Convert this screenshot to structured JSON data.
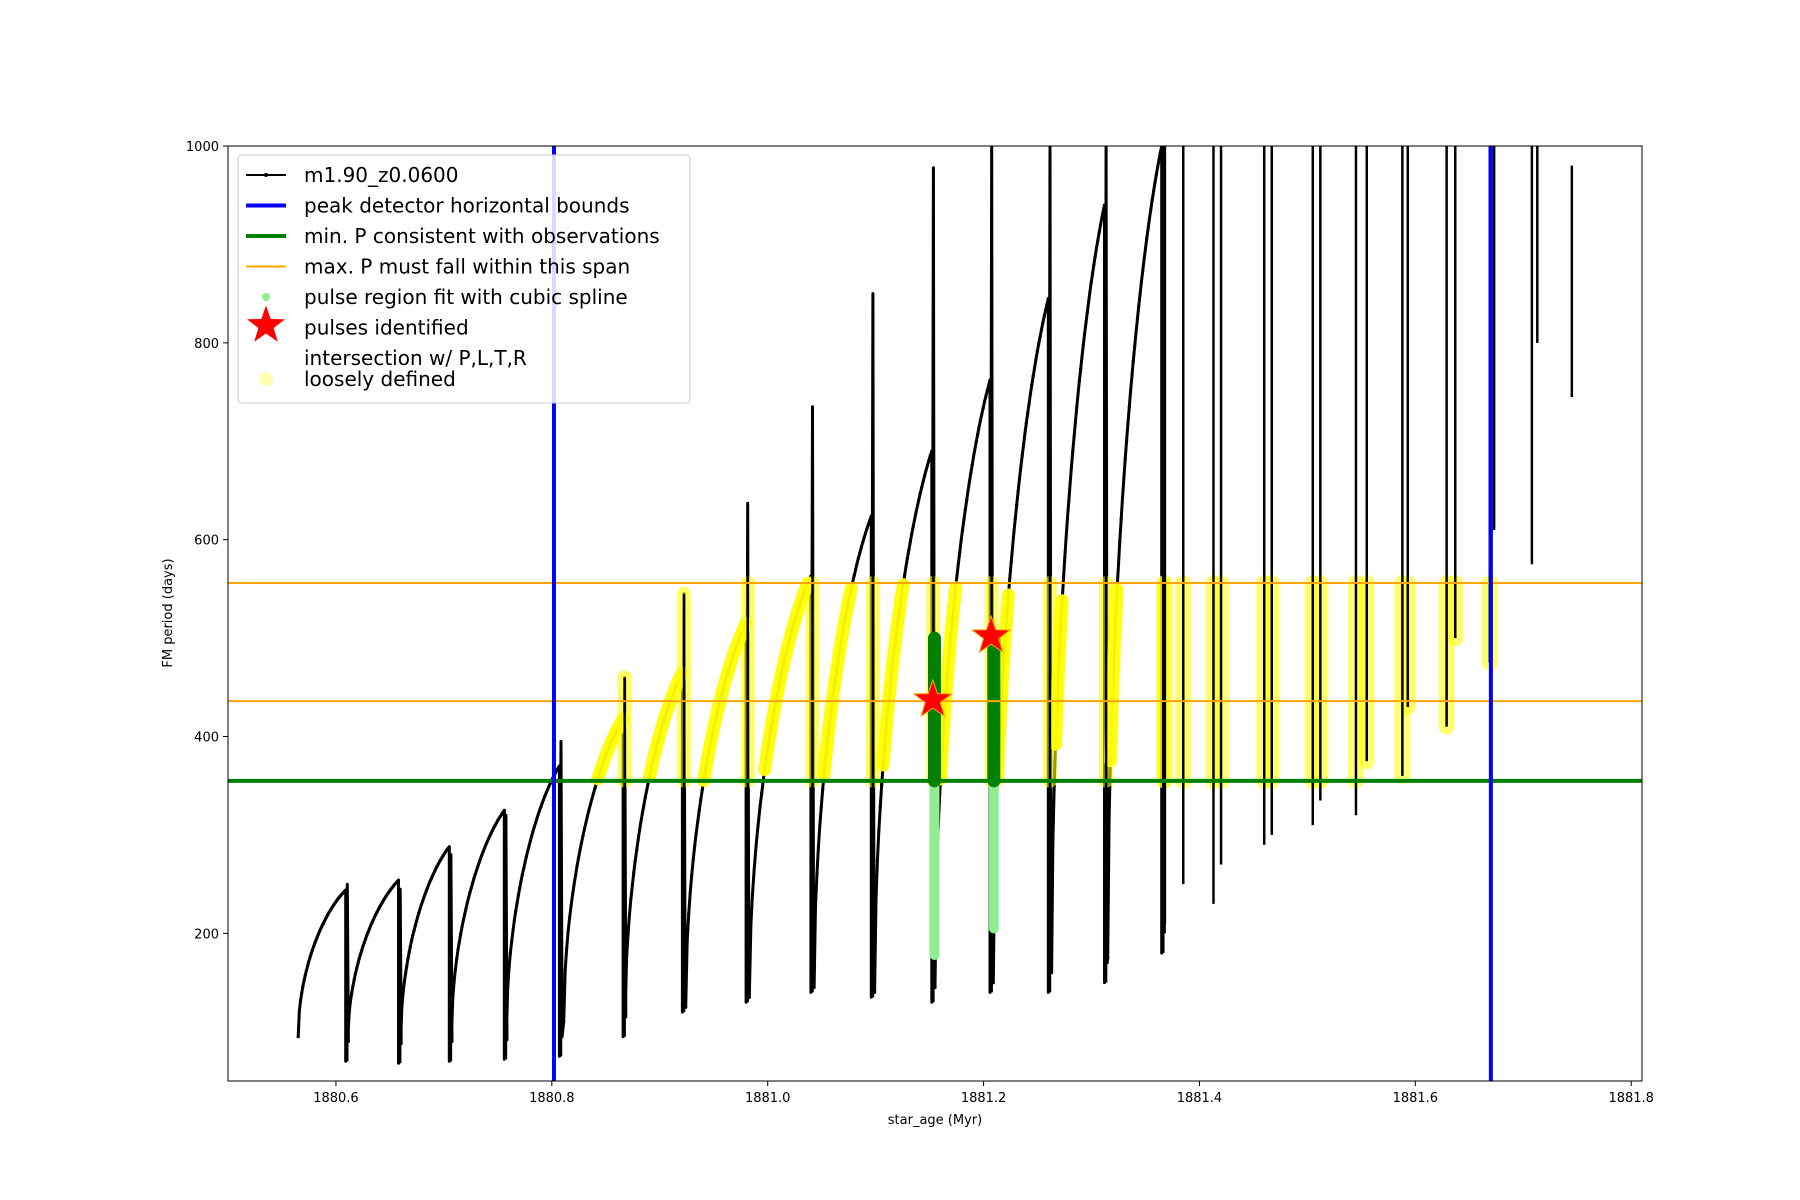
{
  "chart_data": {
    "type": "line",
    "title": "",
    "xlabel": "star_age (Myr)",
    "ylabel": "FM period (days)",
    "xlim": [
      1880.5,
      1881.81
    ],
    "ylim": [
      50,
      1000
    ],
    "xticks": [
      1880.6,
      1880.8,
      1881.0,
      1881.2,
      1881.4,
      1881.6,
      1881.8
    ],
    "xtick_labels": [
      "1880.6",
      "1880.8",
      "1881.0",
      "1881.2",
      "1881.4",
      "1881.6",
      "1881.8"
    ],
    "yticks": [
      200,
      400,
      600,
      800,
      1000
    ],
    "ytick_labels": [
      "200",
      "400",
      "600",
      "800",
      "1000"
    ],
    "grid": false,
    "legend_position": "top-left",
    "colors": {
      "track": "#000000",
      "bounds": "#0000ff",
      "min_p": "#008000",
      "max_p": "#ffa500",
      "spline": "#90ee90",
      "pulse": "#ff0000",
      "intersection": "#ffff00"
    },
    "legend": [
      {
        "label": "m1.90_z0.0600",
        "kind": "track"
      },
      {
        "label": "peak detector horizontal bounds",
        "kind": "bounds"
      },
      {
        "label": "min. P consistent with observations",
        "kind": "min_p"
      },
      {
        "label": "max. P must fall within this span",
        "kind": "max_p"
      },
      {
        "label": "pulse region fit with cubic spline",
        "kind": "spline"
      },
      {
        "label": "pulses identified",
        "kind": "pulse"
      },
      {
        "label": "intersection w/ P,L,T,R",
        "label2": "loosely defined",
        "kind": "intersection"
      }
    ],
    "peak_detector_bounds": [
      1880.802,
      1881.67
    ],
    "min_period": 355,
    "max_period_span": [
      436,
      556
    ],
    "pulse_cycles": [
      {
        "start": 1880.565,
        "end": 1880.609,
        "p_start": 95,
        "p_peak": 244,
        "dip": 70,
        "spike": 250
      },
      {
        "start": 1880.611,
        "end": 1880.658,
        "p_start": 90,
        "p_peak": 254,
        "dip": 68,
        "spike": 245
      },
      {
        "start": 1880.66,
        "end": 1880.705,
        "p_start": 92,
        "p_peak": 288,
        "dip": 70,
        "spike": 280
      },
      {
        "start": 1880.707,
        "end": 1880.756,
        "p_start": 95,
        "p_peak": 325,
        "dip": 72,
        "spike": 320
      },
      {
        "start": 1880.758,
        "end": 1880.807,
        "p_start": 100,
        "p_peak": 370,
        "dip": 75,
        "spike": 395
      },
      {
        "start": 1880.811,
        "end": 1880.866,
        "p_start": 110,
        "p_peak": 418,
        "dip": 95,
        "spike": 460
      },
      {
        "start": 1880.868,
        "end": 1880.921,
        "p_start": 115,
        "p_peak": 465,
        "dip": 120,
        "spike": 545
      },
      {
        "start": 1880.924,
        "end": 1880.98,
        "p_start": 125,
        "p_peak": 515,
        "dip": 130,
        "spike": 637
      },
      {
        "start": 1880.983,
        "end": 1881.04,
        "p_start": 135,
        "p_peak": 563,
        "dip": 140,
        "spike": 735
      },
      {
        "start": 1881.043,
        "end": 1881.096,
        "p_start": 145,
        "p_peak": 624,
        "dip": 135,
        "spike": 850
      },
      {
        "start": 1881.099,
        "end": 1881.152,
        "p_start": 140,
        "p_peak": 690,
        "dip": 130,
        "spike": 978
      },
      {
        "start": 1881.155,
        "end": 1881.206,
        "p_start": 145,
        "p_peak": 762,
        "dip": 140,
        "spike": 1000
      },
      {
        "start": 1881.209,
        "end": 1881.26,
        "p_start": 150,
        "p_peak": 845,
        "dip": 140,
        "spike": 1000
      },
      {
        "start": 1881.263,
        "end": 1881.312,
        "p_start": 160,
        "p_peak": 940,
        "dip": 150,
        "spike": 1000
      },
      {
        "start": 1881.315,
        "end": 1881.365,
        "p_start": 175,
        "p_peak": 1000,
        "dip": 180,
        "spike": 1000
      }
    ],
    "late_spikes": [
      {
        "x": 1881.368,
        "low": 210,
        "high": 1000
      },
      {
        "x": 1881.385,
        "low": 250,
        "high": 1000
      },
      {
        "x": 1881.413,
        "low": 230,
        "high": 1000
      },
      {
        "x": 1881.42,
        "low": 270,
        "high": 1000
      },
      {
        "x": 1881.46,
        "low": 290,
        "high": 1000
      },
      {
        "x": 1881.467,
        "low": 300,
        "high": 1000
      },
      {
        "x": 1881.505,
        "low": 310,
        "high": 1000
      },
      {
        "x": 1881.512,
        "low": 335,
        "high": 1000
      },
      {
        "x": 1881.545,
        "low": 320,
        "high": 1000
      },
      {
        "x": 1881.555,
        "low": 375,
        "high": 1000
      },
      {
        "x": 1881.588,
        "low": 360,
        "high": 1000
      },
      {
        "x": 1881.593,
        "low": 430,
        "high": 1000
      },
      {
        "x": 1881.629,
        "low": 410,
        "high": 1000
      },
      {
        "x": 1881.637,
        "low": 500,
        "high": 1000
      },
      {
        "x": 1881.669,
        "low": 475,
        "high": 1000
      },
      {
        "x": 1881.673,
        "low": 610,
        "high": 1000
      },
      {
        "x": 1881.708,
        "low": 575,
        "high": 1000
      },
      {
        "x": 1881.713,
        "low": 800,
        "high": 1000
      },
      {
        "x": 1881.745,
        "low": 745,
        "high": 980
      }
    ],
    "spline_regions": [
      {
        "x": 1881.1545,
        "low": 178,
        "high": 500
      },
      {
        "x": 1881.2095,
        "low": 205,
        "high": 500
      }
    ],
    "pulses_identified": [
      {
        "x": 1881.153,
        "y": 437
      },
      {
        "x": 1881.207,
        "y": 502
      }
    ],
    "intersection_band": [
      355,
      556
    ]
  }
}
